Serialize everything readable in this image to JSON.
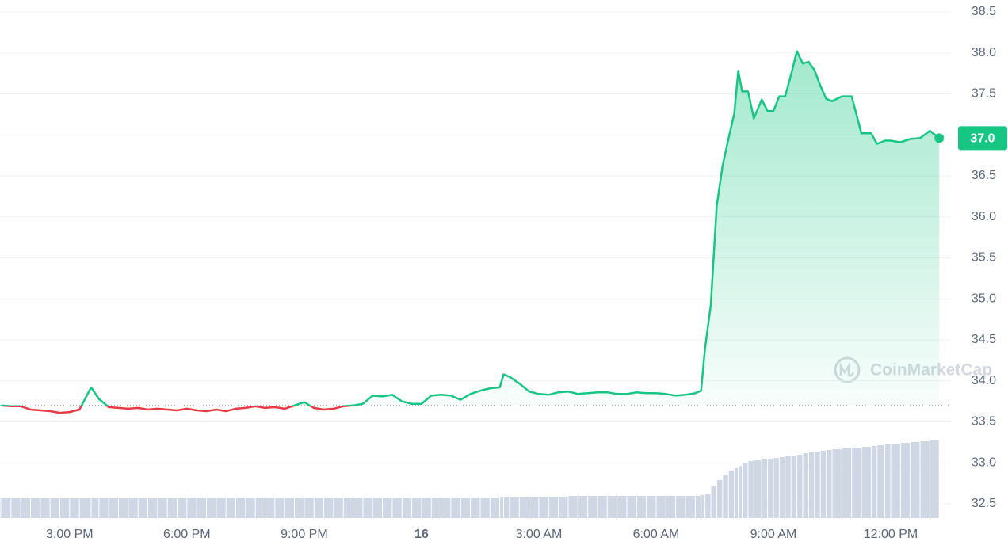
{
  "chart_data": {
    "type": "line",
    "x": [
      13.25,
      13.5,
      13.75,
      14.0,
      14.25,
      14.5,
      14.75,
      15.0,
      15.25,
      15.55,
      15.75,
      16.0,
      16.25,
      16.5,
      16.75,
      17.0,
      17.25,
      17.5,
      17.75,
      18.0,
      18.25,
      18.5,
      18.75,
      19.0,
      19.25,
      19.5,
      19.75,
      20.0,
      20.25,
      20.5,
      20.75,
      21.0,
      21.25,
      21.5,
      21.75,
      22.0,
      22.25,
      22.5,
      22.75,
      23.0,
      23.25,
      23.5,
      23.75,
      24.0,
      24.25,
      24.5,
      24.75,
      25.0,
      25.25,
      25.5,
      25.75,
      26.0,
      26.1,
      26.25,
      26.5,
      26.75,
      27.0,
      27.25,
      27.5,
      27.75,
      28.0,
      28.25,
      28.5,
      28.75,
      29.0,
      29.25,
      29.5,
      29.75,
      30.0,
      30.25,
      30.5,
      30.75,
      31.0,
      31.15,
      31.25,
      31.4,
      31.55,
      31.7,
      31.85,
      32.0,
      32.1,
      32.2,
      32.35,
      32.5,
      32.7,
      32.85,
      33.0,
      33.15,
      33.3,
      33.45,
      33.6,
      33.75,
      33.9,
      34.05,
      34.2,
      34.35,
      34.5,
      34.75,
      35.0,
      35.25,
      35.5,
      35.65,
      35.85,
      36.0,
      36.25,
      36.5,
      36.75,
      37.0,
      37.24
    ],
    "values": [
      33.7,
      33.69,
      33.69,
      33.65,
      33.64,
      33.63,
      33.61,
      33.62,
      33.65,
      33.92,
      33.78,
      33.68,
      33.67,
      33.66,
      33.67,
      33.65,
      33.66,
      33.65,
      33.64,
      33.66,
      33.64,
      33.63,
      33.65,
      33.63,
      33.66,
      33.67,
      33.69,
      33.67,
      33.68,
      33.66,
      33.7,
      33.74,
      33.67,
      33.65,
      33.66,
      33.69,
      33.7,
      33.72,
      33.82,
      33.81,
      33.83,
      33.75,
      33.72,
      33.72,
      33.82,
      33.83,
      33.82,
      33.77,
      33.84,
      33.88,
      33.91,
      33.92,
      34.08,
      34.05,
      33.97,
      33.87,
      33.84,
      33.83,
      33.86,
      33.87,
      33.84,
      33.85,
      33.86,
      33.86,
      33.84,
      33.84,
      33.86,
      33.85,
      33.85,
      33.84,
      33.82,
      33.83,
      33.85,
      33.88,
      34.39,
      34.93,
      36.13,
      36.62,
      36.95,
      37.26,
      37.78,
      37.53,
      37.53,
      37.2,
      37.43,
      37.29,
      37.29,
      37.47,
      37.47,
      37.73,
      38.02,
      37.87,
      37.89,
      37.79,
      37.6,
      37.44,
      37.41,
      37.47,
      37.47,
      37.02,
      37.02,
      36.89,
      36.93,
      36.93,
      36.91,
      36.95,
      36.96,
      37.05,
      36.96
    ],
    "volume": [
      25,
      25,
      25,
      25,
      25,
      25,
      25,
      25,
      25,
      25,
      25,
      25,
      25,
      25,
      25,
      25,
      25,
      25,
      25,
      25,
      26,
      26,
      26,
      26,
      26,
      26,
      26,
      26,
      26,
      26,
      26,
      26,
      26,
      26,
      26,
      26,
      26,
      26,
      26,
      26,
      26,
      26,
      26,
      26,
      26,
      26,
      26,
      26,
      26,
      26,
      26,
      26,
      27,
      27,
      27,
      27,
      27,
      27,
      27,
      27,
      28,
      28,
      28,
      28,
      28,
      28,
      28,
      28,
      28,
      28,
      28,
      28,
      28,
      28,
      29,
      30,
      40,
      48,
      55,
      60,
      63,
      66,
      70,
      72,
      73,
      74,
      75,
      76,
      77,
      78,
      79,
      80,
      82,
      83,
      84,
      85,
      86,
      87,
      88,
      89,
      90,
      91,
      92,
      93,
      94,
      95,
      96,
      97,
      98
    ],
    "baseline": 33.7,
    "colors": {
      "up": "#16c784",
      "down": "#ea3943",
      "volume": "#cfd6e4"
    },
    "xlim": [
      13.22,
      37.54
    ],
    "xticks": [
      {
        "value": 15,
        "label": "3:00 PM"
      },
      {
        "value": 18,
        "label": "6:00 PM"
      },
      {
        "value": 21,
        "label": "9:00 PM"
      },
      {
        "value": 24,
        "label": "16"
      },
      {
        "value": 27,
        "label": "3:00 AM"
      },
      {
        "value": 30,
        "label": "6:00 AM"
      },
      {
        "value": 33,
        "label": "9:00 AM"
      },
      {
        "value": 36,
        "label": "12:00 PM"
      }
    ],
    "ylim": [
      32.5,
      38.5
    ],
    "yticks": [
      {
        "value": 32.5,
        "label": "32.5"
      },
      {
        "value": 33,
        "label": "33.0"
      },
      33.5,
      {
        "value": 34,
        "label": "34.0"
      },
      34.5,
      {
        "value": 35,
        "label": "35.0"
      },
      35.5,
      {
        "value": 36,
        "label": "36.0"
      },
      36.5,
      {
        "value": 37,
        "label": "37.0"
      },
      37.5,
      {
        "value": 38,
        "label": "38.0"
      },
      38.5
    ],
    "grid": true,
    "current_price_label": "37.0",
    "watermark": "CoinMarketCap"
  }
}
